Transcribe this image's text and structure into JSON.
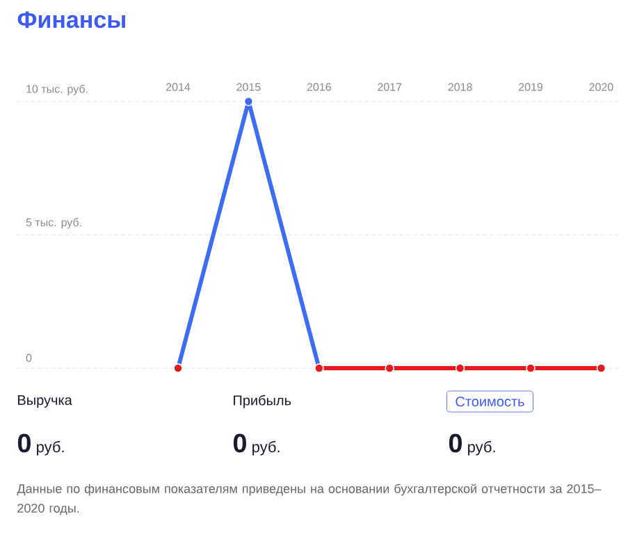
{
  "chart_data": {
    "type": "line",
    "title": "Финансы",
    "categories": [
      "2014",
      "2015",
      "2016",
      "2017",
      "2018",
      "2019",
      "2020"
    ],
    "series": [
      {
        "color": "#3d6cf5",
        "values": [
          0,
          10,
          0,
          null,
          null,
          null,
          null
        ]
      },
      {
        "color": "#e8191c",
        "values": [
          0,
          null,
          0,
          0,
          0,
          0,
          0
        ]
      }
    ],
    "ylim": [
      0,
      10
    ],
    "yticks": [
      {
        "value": 0,
        "label": "0"
      },
      {
        "value": 5,
        "label": "5 тыс. руб."
      },
      {
        "value": 10,
        "label": "10 тыс. руб."
      }
    ],
    "grid": "y",
    "marker": "circle",
    "line_style": "solid",
    "annotations": [
      "Выручка",
      "**0** руб.",
      "Прибыль",
      "**0** руб.",
      "Стоимость",
      "**0** руб.",
      "Данные по финансовым показателям приведены на основании бухгалтерской отчетности за 2015–2020 годы."
    ]
  }
}
